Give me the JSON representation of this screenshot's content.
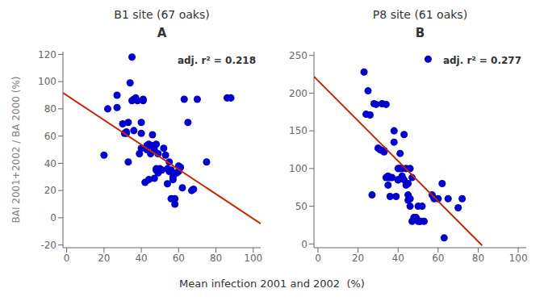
{
  "chart_data": [
    {
      "type": "scatter",
      "title": "B1 site (67 oaks)",
      "subtitle": "A",
      "xlabel": "Mean infection 2001 and 2002  (%)",
      "ylabel": "BAI 2001+2002 / BA 2000  (%)",
      "annotations": [
        "adj. r² = 0.218"
      ],
      "grid": false,
      "xlim": [
        -2,
        104
      ],
      "xticks": [
        0,
        20,
        40,
        60,
        80,
        100
      ],
      "ylim": [
        -22,
        122
      ],
      "yticks": [
        -20,
        0,
        20,
        40,
        60,
        80,
        100,
        120
      ],
      "series": [
        {
          "type": "scatter",
          "color": "#0000cc",
          "x": [
            20,
            22,
            27,
            27,
            30,
            31,
            32,
            32,
            33,
            33,
            34,
            35,
            35,
            36,
            36,
            37,
            38,
            39,
            40,
            40,
            40,
            41,
            41,
            42,
            43,
            43,
            44,
            44,
            44,
            45,
            46,
            46,
            47,
            47,
            48,
            48,
            48,
            49,
            49,
            50,
            50,
            51,
            52,
            53,
            54,
            54,
            55,
            55,
            56,
            56,
            57,
            57,
            58,
            58,
            59,
            60,
            60,
            61,
            62,
            63,
            65,
            67,
            68,
            70,
            75,
            86,
            88
          ],
          "values": [
            46,
            80,
            90,
            81,
            69,
            62,
            63,
            62,
            70,
            41,
            99,
            118,
            86,
            87,
            64,
            88,
            86,
            47,
            62,
            70,
            51,
            86,
            87,
            26,
            53,
            50,
            28,
            53,
            54,
            47,
            53,
            61,
            50,
            29,
            35,
            36,
            54,
            47,
            33,
            35,
            36,
            35,
            51,
            46,
            36,
            25,
            34,
            41,
            14,
            35,
            30,
            28,
            10,
            14,
            33,
            34,
            38,
            37,
            22,
            87,
            70,
            20,
            21,
            87,
            41,
            88,
            88
          ]
        },
        {
          "type": "line",
          "color": "#cc2200",
          "x": [
            -2,
            104
          ],
          "values": [
            91.7,
            -4.3
          ]
        }
      ]
    },
    {
      "type": "scatter",
      "title": "P8 site (61 oaks)",
      "subtitle": "B",
      "annotations": [
        "adj. r² = 0.277"
      ],
      "grid": false,
      "xlim": [
        -2,
        104
      ],
      "xticks": [
        0,
        20,
        40,
        60,
        80,
        100
      ],
      "ylim": [
        -5,
        255
      ],
      "yticks": [
        0,
        50,
        100,
        150,
        200,
        250
      ],
      "series": [
        {
          "type": "scatter",
          "color": "#0000cc",
          "x": [
            23,
            24,
            25,
            26,
            27,
            28,
            29,
            30,
            31,
            32,
            32,
            33,
            33,
            34,
            34,
            35,
            35,
            35,
            36,
            36,
            37,
            38,
            38,
            39,
            40,
            40,
            40,
            41,
            41,
            42,
            42,
            43,
            43,
            44,
            44,
            45,
            45,
            45,
            46,
            46,
            46,
            47,
            47,
            48,
            48,
            49,
            50,
            50,
            51,
            51,
            52,
            53,
            55,
            57,
            58,
            60,
            62,
            63,
            65,
            70,
            72
          ],
          "values": [
            228,
            172,
            203,
            171,
            65,
            186,
            185,
            127,
            125,
            124,
            186,
            122,
            124,
            88,
            185,
            88,
            78,
            90,
            88,
            63,
            88,
            150,
            135,
            63,
            85,
            85,
            100,
            100,
            120,
            100,
            90,
            85,
            145,
            78,
            100,
            65,
            58,
            80,
            100,
            60,
            50,
            88,
            30,
            35,
            35,
            35,
            50,
            30,
            30,
            30,
            50,
            30,
            245,
            65,
            60,
            60,
            80,
            8,
            60,
            48,
            60
          ]
        },
        {
          "type": "line",
          "color": "#cc2200",
          "x": [
            -2,
            82
          ],
          "values": [
            222,
            -2
          ]
        }
      ]
    }
  ]
}
